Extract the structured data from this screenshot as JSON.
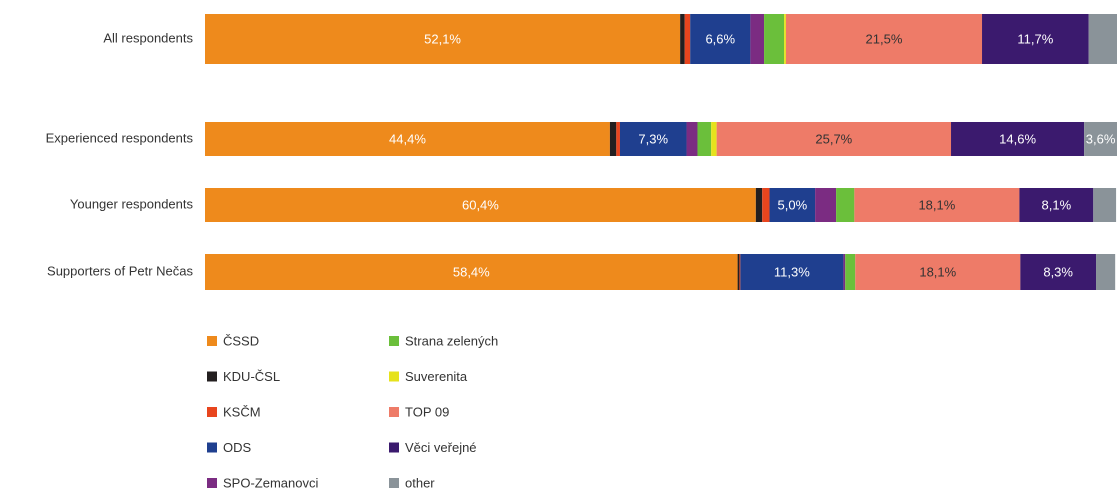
{
  "chart_data": {
    "type": "stacked-bar-horizontal",
    "categories": [
      "All respondents",
      "Experienced respondents",
      "Younger respondents",
      "Supporters of Petr Nečas"
    ],
    "xlim": [
      0,
      100
    ],
    "series": [
      {
        "name": "ČSSD",
        "color": "#ee8a1c",
        "values": [
          52.1,
          44.4,
          60.4,
          58.4
        ],
        "value_labels": [
          "52,1%",
          "44,4%",
          "60,4%",
          "58,4%"
        ]
      },
      {
        "name": "KDU-ČSL",
        "color": "#231f20",
        "values": [
          0.5,
          0.7,
          0.7,
          0.2
        ]
      },
      {
        "name": "KSČM",
        "color": "#e8451e",
        "values": [
          0.6,
          0.4,
          0.8,
          0.1
        ]
      },
      {
        "name": "ODS",
        "color": "#1f3f8f",
        "values": [
          6.6,
          7.3,
          5.0,
          11.3
        ],
        "value_labels": [
          "6,6%",
          "7,3%",
          "5,0%",
          "11,3%"
        ]
      },
      {
        "name": "SPO-Zemanovci",
        "color": "#7b2c82",
        "values": [
          1.5,
          1.2,
          2.3,
          0.2
        ]
      },
      {
        "name": "Strana zelených",
        "color": "#6bbf3b",
        "values": [
          2.2,
          1.5,
          2.0,
          1.1
        ]
      },
      {
        "name": "Suverenita",
        "color": "#e6e21c",
        "values": [
          0.2,
          0.6,
          0,
          0
        ]
      },
      {
        "name": "TOP 09",
        "color": "#ee7b68",
        "values": [
          21.5,
          25.7,
          18.1,
          18.1
        ],
        "value_labels": [
          "21,5%",
          "25,7%",
          "18,1%",
          "18,1%"
        ]
      },
      {
        "name": "Věci veřejné",
        "color": "#3b1a6e",
        "values": [
          11.7,
          14.6,
          8.1,
          8.3
        ],
        "value_labels": [
          "11,7%",
          "14,6%",
          "8,1%",
          "8,3%"
        ]
      },
      {
        "name": "other",
        "color": "#8a9399",
        "values": [
          3.1,
          3.6,
          2.5,
          2.1
        ],
        "value_labels": [
          null,
          "3,6%",
          null,
          null
        ]
      }
    ]
  }
}
